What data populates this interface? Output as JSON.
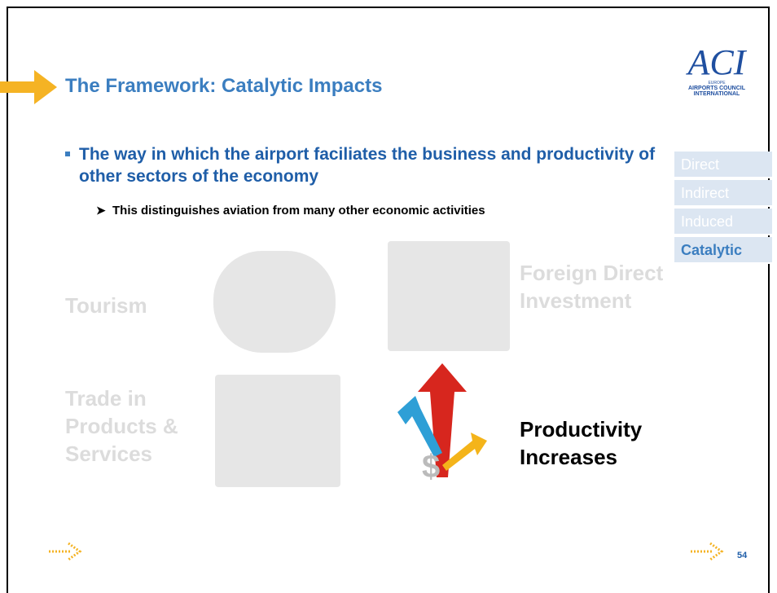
{
  "header": {
    "title": "The Framework: Catalytic Impacts",
    "logo": {
      "mark": "ACI",
      "region": "EUROPE",
      "line1": "AIRPORTS COUNCIL",
      "line2": "INTERNATIONAL"
    }
  },
  "bullet": {
    "text": "The way in which the airport faciliates the business and productivity of other sectors of the economy",
    "sub": "This distinguishes aviation from many other economic activities"
  },
  "nav": {
    "items": [
      "Direct",
      "Indirect",
      "Induced",
      "Catalytic"
    ]
  },
  "tiles": [
    "Tourism",
    "Foreign Direct Investment",
    "Trade in Products & Services",
    "Productivity Increases"
  ],
  "page_number": "54"
}
